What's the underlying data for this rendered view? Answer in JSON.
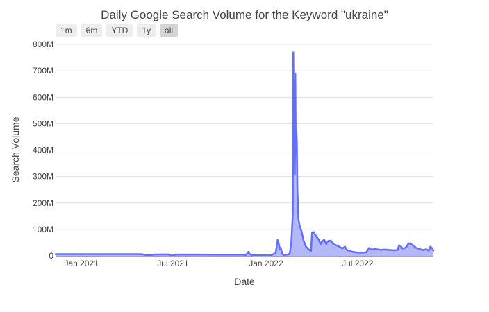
{
  "chart_data": {
    "type": "area",
    "title": "Daily Google Search Volume for the Keyword \"ukraine\"",
    "xlabel": "Date",
    "ylabel": "Search Volume",
    "range_buttons": [
      {
        "label": "1m",
        "active": false
      },
      {
        "label": "6m",
        "active": false
      },
      {
        "label": "YTD",
        "active": false
      },
      {
        "label": "1y",
        "active": false
      },
      {
        "label": "all",
        "active": true
      }
    ],
    "x_range": [
      "2020-11-11",
      "2022-11-28"
    ],
    "ylim": [
      0,
      800000000
    ],
    "y_ticks": [
      {
        "value": 0,
        "label": "0"
      },
      {
        "value": 100000000,
        "label": "100M"
      },
      {
        "value": 200000000,
        "label": "200M"
      },
      {
        "value": 300000000,
        "label": "300M"
      },
      {
        "value": 400000000,
        "label": "400M"
      },
      {
        "value": 500000000,
        "label": "500M"
      },
      {
        "value": 600000000,
        "label": "600M"
      },
      {
        "value": 700000000,
        "label": "700M"
      },
      {
        "value": 800000000,
        "label": "800M"
      }
    ],
    "x_ticks": [
      {
        "date": "2021-01-01",
        "label": "Jan 2021"
      },
      {
        "date": "2021-07-01",
        "label": "Jul 2021"
      },
      {
        "date": "2022-01-01",
        "label": "Jan 2022"
      },
      {
        "date": "2022-07-01",
        "label": "Jul 2022"
      }
    ],
    "grid": true,
    "line_color": "#636efa",
    "fill_color": "#b3b8f6",
    "series": [
      {
        "points": [
          [
            "2020-11-11",
            6500000
          ],
          [
            "2020-12-15",
            6500000
          ],
          [
            "2021-02-01",
            6500000
          ],
          [
            "2021-03-15",
            6500000
          ],
          [
            "2021-04-20",
            6500000
          ],
          [
            "2021-05-01",
            6200000
          ],
          [
            "2021-05-10",
            2500000
          ],
          [
            "2021-05-18",
            3000000
          ],
          [
            "2021-05-25",
            5000000
          ],
          [
            "2021-06-10",
            5500000
          ],
          [
            "2021-06-25",
            5200000
          ],
          [
            "2021-06-28",
            1000000
          ],
          [
            "2021-07-02",
            1500000
          ],
          [
            "2021-07-06",
            5000000
          ],
          [
            "2021-08-10",
            5000000
          ],
          [
            "2021-09-20",
            4500000
          ],
          [
            "2021-10-20",
            4500000
          ],
          [
            "2021-11-18",
            4500000
          ],
          [
            "2021-11-22",
            3000000
          ],
          [
            "2021-11-27",
            15000000
          ],
          [
            "2021-12-01",
            5000000
          ],
          [
            "2021-12-10",
            2000000
          ],
          [
            "2022-01-10",
            2000000
          ],
          [
            "2022-01-20",
            10000000
          ],
          [
            "2022-01-24",
            60000000
          ],
          [
            "2022-01-26",
            50000000
          ],
          [
            "2022-01-28",
            25000000
          ],
          [
            "2022-01-30",
            32000000
          ],
          [
            "2022-02-02",
            8000000
          ],
          [
            "2022-02-05",
            3000000
          ],
          [
            "2022-02-15",
            6000000
          ],
          [
            "2022-02-17",
            10000000
          ],
          [
            "2022-02-20",
            50000000
          ],
          [
            "2022-02-22",
            120000000
          ],
          [
            "2022-02-23",
            160000000
          ],
          [
            "2022-02-24",
            770000000
          ],
          [
            "2022-02-25",
            520000000
          ],
          [
            "2022-02-26",
            630000000
          ],
          [
            "2022-02-27",
            310000000
          ],
          [
            "2022-02-28",
            690000000
          ],
          [
            "2022-03-01",
            380000000
          ],
          [
            "2022-03-02",
            485000000
          ],
          [
            "2022-03-03",
            430000000
          ],
          [
            "2022-03-04",
            260000000
          ],
          [
            "2022-03-06",
            140000000
          ],
          [
            "2022-03-09",
            110000000
          ],
          [
            "2022-03-12",
            95000000
          ],
          [
            "2022-03-16",
            60000000
          ],
          [
            "2022-03-21",
            35000000
          ],
          [
            "2022-03-26",
            25000000
          ],
          [
            "2022-03-31",
            18000000
          ],
          [
            "2022-04-02",
            88000000
          ],
          [
            "2022-04-05",
            90000000
          ],
          [
            "2022-04-10",
            75000000
          ],
          [
            "2022-04-15",
            62000000
          ],
          [
            "2022-04-19",
            45000000
          ],
          [
            "2022-04-22",
            55000000
          ],
          [
            "2022-04-26",
            62000000
          ],
          [
            "2022-04-30",
            45000000
          ],
          [
            "2022-05-04",
            56000000
          ],
          [
            "2022-05-09",
            58000000
          ],
          [
            "2022-05-14",
            45000000
          ],
          [
            "2022-05-20",
            40000000
          ],
          [
            "2022-05-26",
            35000000
          ],
          [
            "2022-06-01",
            28000000
          ],
          [
            "2022-06-06",
            35000000
          ],
          [
            "2022-06-10",
            22000000
          ],
          [
            "2022-06-14",
            20000000
          ],
          [
            "2022-06-20",
            16000000
          ],
          [
            "2022-06-25",
            14000000
          ],
          [
            "2022-07-03",
            12000000
          ],
          [
            "2022-07-10",
            12000000
          ],
          [
            "2022-07-18",
            13000000
          ],
          [
            "2022-07-24",
            30000000
          ],
          [
            "2022-07-28",
            24000000
          ],
          [
            "2022-08-05",
            26000000
          ],
          [
            "2022-08-15",
            23000000
          ],
          [
            "2022-08-25",
            24000000
          ],
          [
            "2022-09-05",
            22000000
          ],
          [
            "2022-09-12",
            21000000
          ],
          [
            "2022-09-18",
            22000000
          ],
          [
            "2022-09-21",
            40000000
          ],
          [
            "2022-09-24",
            38000000
          ],
          [
            "2022-09-28",
            28000000
          ],
          [
            "2022-10-03",
            30000000
          ],
          [
            "2022-10-06",
            35000000
          ],
          [
            "2022-10-10",
            48000000
          ],
          [
            "2022-10-14",
            45000000
          ],
          [
            "2022-10-19",
            40000000
          ],
          [
            "2022-10-25",
            30000000
          ],
          [
            "2022-11-02",
            25000000
          ],
          [
            "2022-11-08",
            22000000
          ],
          [
            "2022-11-14",
            25000000
          ],
          [
            "2022-11-19",
            20000000
          ],
          [
            "2022-11-22",
            35000000
          ],
          [
            "2022-11-25",
            30000000
          ],
          [
            "2022-11-28",
            20000000
          ]
        ]
      }
    ]
  }
}
